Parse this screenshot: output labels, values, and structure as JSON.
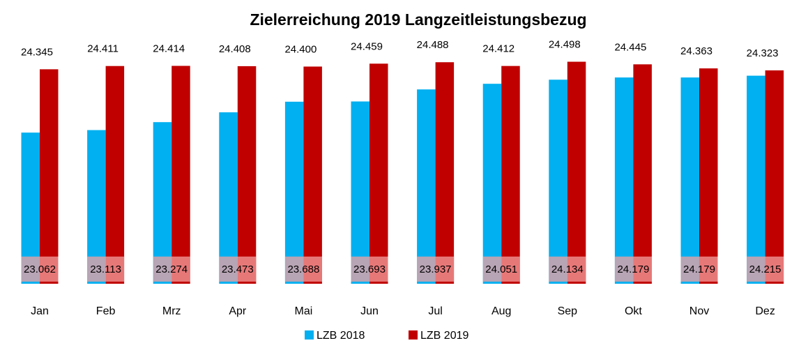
{
  "chart_data": {
    "type": "bar",
    "title": "Zielerreichung 2019 Langzeitleistungsbezug",
    "categories": [
      "Jan",
      "Feb",
      "Mrz",
      "Apr",
      "Mai",
      "Jun",
      "Jul",
      "Aug",
      "Sep",
      "Okt",
      "Nov",
      "Dez"
    ],
    "series": [
      {
        "name": "LZB 2018",
        "color": "#00b0f0",
        "values": [
          23062,
          23113,
          23274,
          23473,
          23688,
          23693,
          23937,
          24051,
          24134,
          24179,
          24179,
          24215
        ],
        "value_labels": [
          "23.062",
          "23.113",
          "23.274",
          "23.473",
          "23.688",
          "23.693",
          "23.937",
          "24.051",
          "24.134",
          "24.179",
          "24.179",
          "24.215"
        ]
      },
      {
        "name": "LZB 2019",
        "color": "#c00000",
        "values": [
          24345,
          24411,
          24414,
          24408,
          24400,
          24459,
          24488,
          24412,
          24498,
          24445,
          24363,
          24323
        ],
        "value_labels": [
          "24.345",
          "24.411",
          "24.414",
          "24.408",
          "24.400",
          "24.459",
          "24.488",
          "24.412",
          "24.498",
          "24.445",
          "24.363",
          "24.323"
        ]
      }
    ],
    "ylim": [
      20000,
      25000
    ],
    "legend": "bottom"
  }
}
